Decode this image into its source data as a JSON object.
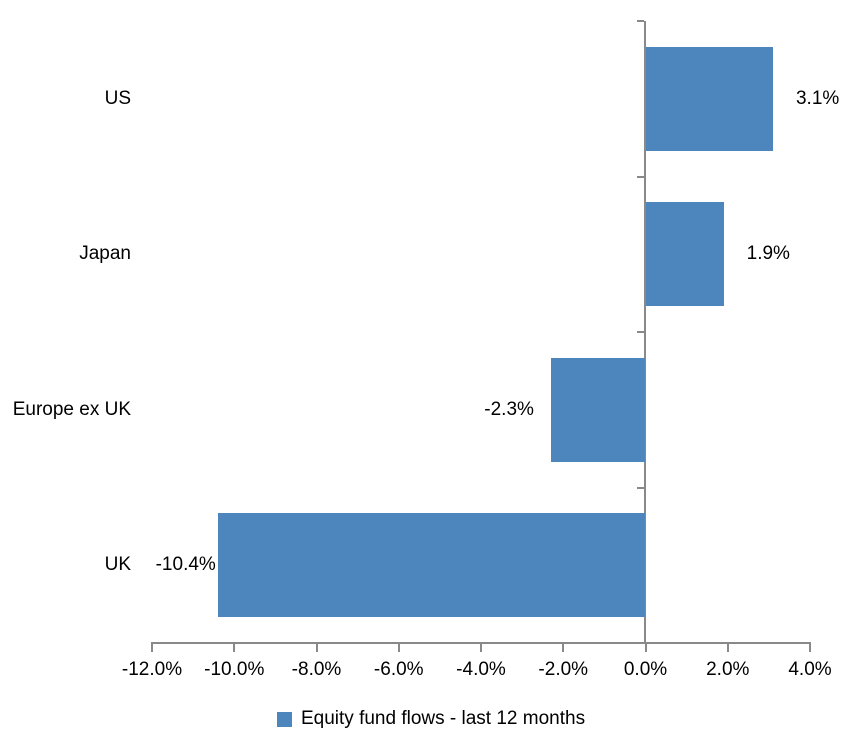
{
  "chart_data": {
    "type": "bar",
    "orientation": "horizontal",
    "title": "",
    "xlabel": "",
    "ylabel": "",
    "categories": [
      "US",
      "Japan",
      "Europe ex UK",
      "UK"
    ],
    "series": [
      {
        "name": "Equity fund flows - last 12 months",
        "values": [
          3.1,
          1.9,
          -2.3,
          -10.4
        ],
        "data_labels": [
          "3.1%",
          "1.9%",
          "-2.3%",
          "-10.4%"
        ]
      }
    ],
    "xlim": [
      -12,
      4
    ],
    "x_tick_values": [
      -12,
      -10,
      -8,
      -6,
      -4,
      -2,
      0,
      2,
      4
    ],
    "x_tick_labels": [
      "-12.0%",
      "-10.0%",
      "-8.0%",
      "-6.0%",
      "-4.0%",
      "-2.0%",
      "0.0%",
      "2.0%",
      "4.0%"
    ],
    "grid": false,
    "legend_position": "bottom-center",
    "legend": "Equity fund flows - last 12 months",
    "colors": {
      "bar": "#4D86BC",
      "axis": "#898989",
      "text": "#000000",
      "background": "#ffffff"
    }
  }
}
